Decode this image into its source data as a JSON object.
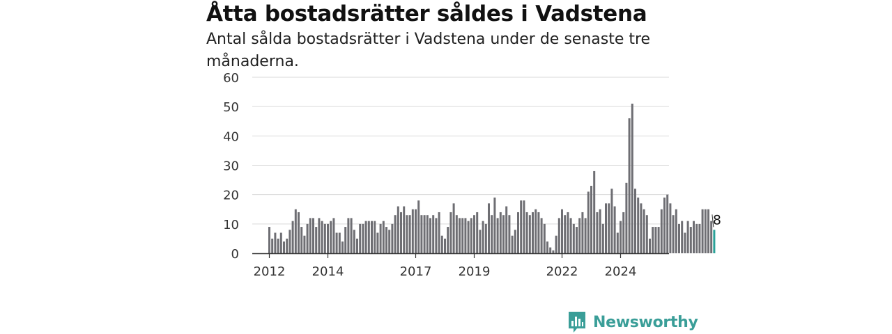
{
  "header": {
    "title": "Åtta bostadsrätter såldes i Vadstena",
    "subtitle": "Antal sålda bostadsrätter i Vadstena under de senaste tre månaderna."
  },
  "brand": {
    "name": "Newsworthy",
    "logo_icon": "bar-chart-speech-bubble-icon",
    "color": "#3a9e98"
  },
  "chart_data": {
    "type": "bar",
    "title": "",
    "xlabel": "",
    "ylabel": "",
    "ylim": [
      0,
      60
    ],
    "yticks": [
      0,
      10,
      20,
      30,
      40,
      50,
      60
    ],
    "grid": true,
    "x_start_year": 2012,
    "xtick_labels": [
      "2012",
      "2014",
      "2017",
      "2019",
      "2022",
      "2024"
    ],
    "xtick_indices": [
      0,
      20,
      50,
      70,
      100,
      120
    ],
    "bar_color": "#6e6e73",
    "highlight_color": "#2aa198",
    "highlight_label": "8",
    "values": [
      9,
      5,
      7,
      5,
      7,
      4,
      5,
      8,
      11,
      15,
      14,
      9,
      6,
      10,
      12,
      12,
      9,
      12,
      11,
      10,
      10,
      11,
      12,
      7,
      7,
      4,
      9,
      12,
      12,
      8,
      5,
      10,
      10,
      11,
      11,
      11,
      11,
      7,
      10,
      11,
      9,
      8,
      10,
      13,
      16,
      14,
      16,
      13,
      13,
      15,
      15,
      18,
      13,
      13,
      13,
      12,
      13,
      12,
      14,
      6,
      5,
      9,
      14,
      17,
      13,
      12,
      12,
      12,
      11,
      12,
      13,
      14,
      8,
      11,
      10,
      17,
      13,
      19,
      12,
      14,
      13,
      16,
      13,
      6,
      8,
      14,
      18,
      18,
      14,
      13,
      14,
      15,
      14,
      12,
      10,
      4,
      2,
      1,
      6,
      12,
      15,
      13,
      14,
      12,
      10,
      9,
      12,
      14,
      12,
      21,
      23,
      28,
      14,
      15,
      10,
      17,
      17,
      22,
      16,
      7,
      11,
      14,
      24,
      46,
      51,
      22,
      19,
      17,
      15,
      13,
      5,
      9,
      9,
      9,
      15,
      19,
      20,
      17,
      13,
      15,
      10,
      11,
      7,
      11,
      9,
      11,
      10,
      10,
      15,
      15,
      15,
      11,
      8
    ]
  }
}
